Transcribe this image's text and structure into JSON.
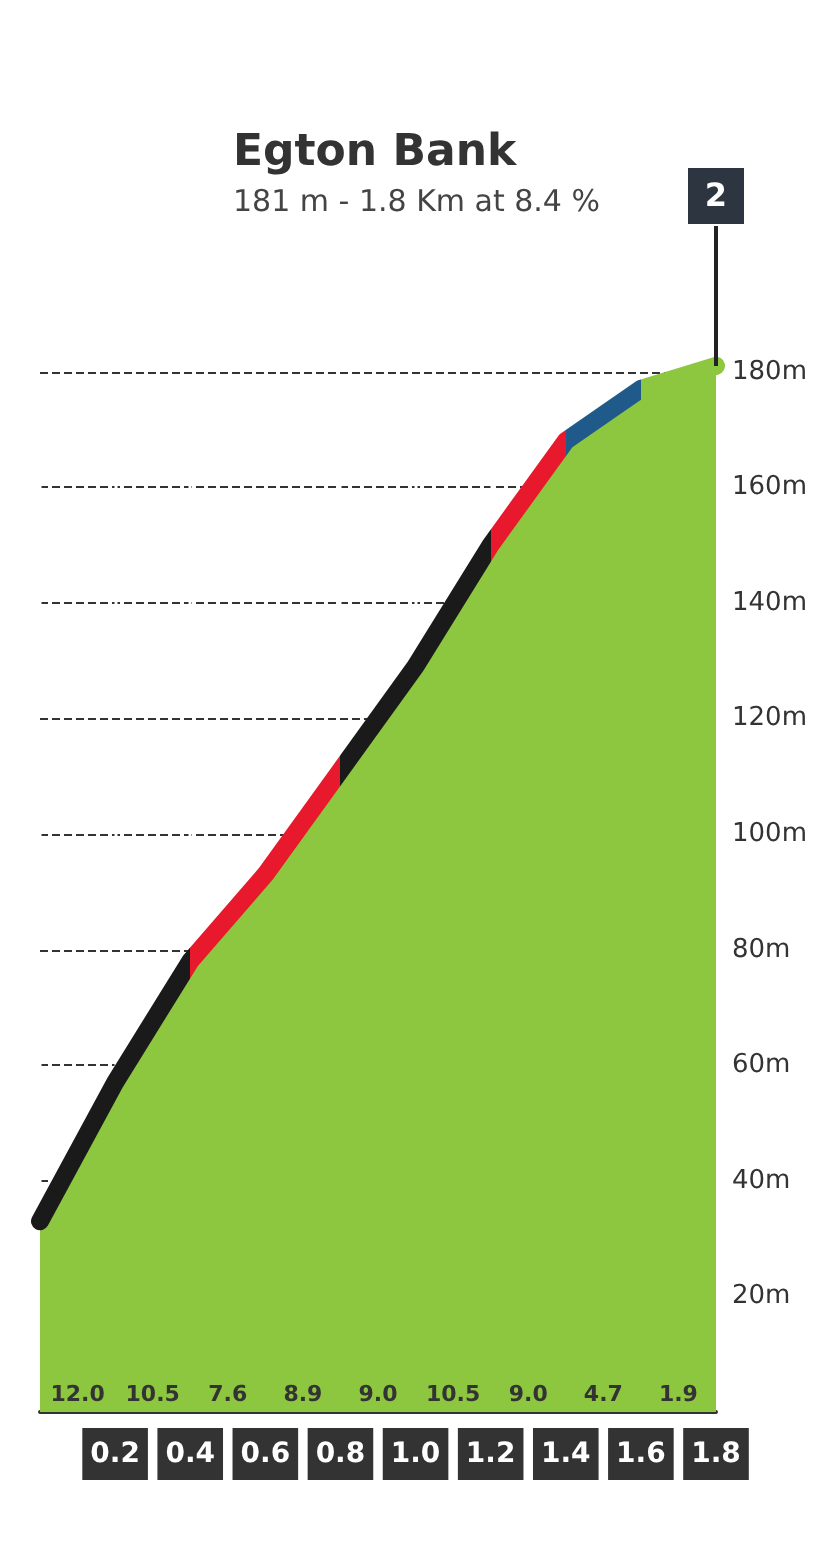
{
  "chart_data": {
    "type": "area",
    "title": "Egton Bank",
    "subtitle": "181 m - 1.8 Km at 8.4 %",
    "x": [
      0,
      0.2,
      0.4,
      0.6,
      0.8,
      1.0,
      1.2,
      1.4,
      1.6,
      1.8
    ],
    "series": [
      {
        "color": "#8dc63f",
        "colors": [
          "#1a1a1a",
          "#1a1a1a",
          "#1a1a1a",
          "#e8192c",
          "#e8192c",
          "#1a1a1a",
          "#1a1a1a",
          "#e8192c",
          "#1f5a8a",
          "#8dc63f"
        ],
        "values": [
          33,
          57,
          78,
          93,
          111,
          129,
          150,
          168,
          177,
          181
        ]
      }
    ],
    "annotations": [
      {
        "text": "12.0",
        "x": 0.1,
        "y": 0
      },
      {
        "text": "10.5",
        "x": 0.3,
        "y": 0
      },
      {
        "text": "7.6",
        "x": 0.5,
        "y": 0
      },
      {
        "text": "8.9",
        "x": 0.7,
        "y": 0
      },
      {
        "text": "9.0",
        "x": 0.9,
        "y": 0
      },
      {
        "text": "10.5",
        "x": 1.1,
        "y": 0
      },
      {
        "text": "9.0",
        "x": 1.3,
        "y": 0
      },
      {
        "text": "4.7",
        "x": 1.5,
        "y": 0
      },
      {
        "text": "1.9",
        "x": 1.7,
        "y": 0
      },
      "2"
    ],
    "xlim": [
      0,
      1.8
    ],
    "xticks": [
      {
        "value": 0,
        "label": null
      },
      0.2,
      0.4,
      0.6,
      0.8,
      {
        "value": 1.0,
        "label": "1.0"
      },
      1.2,
      1.4,
      1.6,
      1.8
    ],
    "ylim": [
      0,
      182
    ],
    "yticks": [
      {
        "value": 0,
        "label": null
      },
      {
        "value": 20,
        "label": "20m"
      },
      {
        "value": 40,
        "label": "40m"
      },
      {
        "value": 60,
        "label": "60m"
      },
      {
        "value": 80,
        "label": "80m"
      },
      {
        "value": 100,
        "label": "100m"
      },
      {
        "value": 120,
        "label": "120m"
      },
      {
        "value": 140,
        "label": "140m"
      },
      {
        "value": 160,
        "label": "160m"
      },
      {
        "value": 180,
        "label": "180m"
      }
    ],
    "grid": true,
    "marker": "none"
  }
}
